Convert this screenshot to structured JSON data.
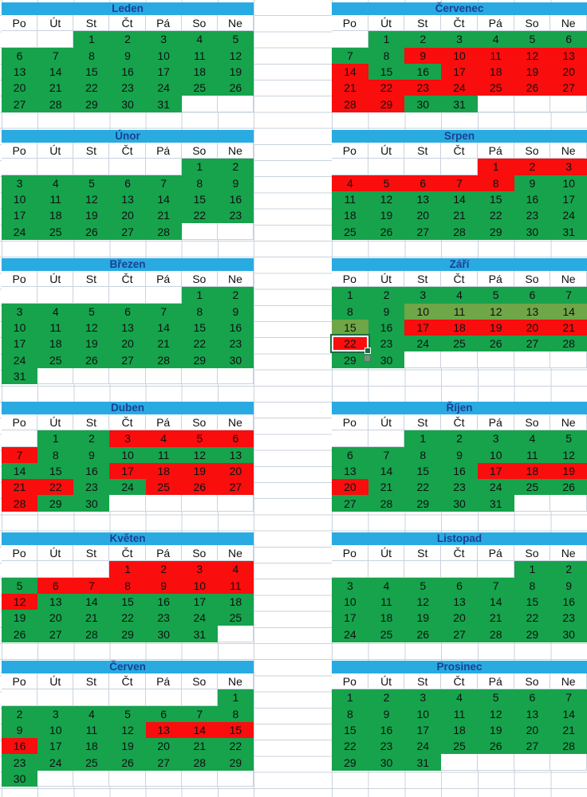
{
  "app": {
    "type": "spreadsheet-year-calendar",
    "language": "cs"
  },
  "colors": {
    "header_band": "#29abe2",
    "title_text": "#1c3f94",
    "workday_green": "#16a34c",
    "holiday_red": "#fa0d0d",
    "selection_highlight_olive": "#6fa647",
    "selection_border_green": "#1d6b43",
    "gridline": "#c9d3dd",
    "day_text": "#101010"
  },
  "day_headers": [
    "Po",
    "Út",
    "St",
    "Čt",
    "Pá",
    "So",
    "Ne"
  ],
  "selection": {
    "month": "Září",
    "active_cell_day": 22,
    "highlighted_days": [
      10,
      11,
      12,
      13,
      14,
      15
    ]
  },
  "months": [
    {
      "name": "Leden",
      "slug": "leden",
      "side": "left",
      "row": 0,
      "weeks": [
        [
          "",
          "",
          "1 g",
          "2 g",
          "3 g",
          "4 g",
          "5 g"
        ],
        [
          "6 g",
          "7 g",
          "8 g",
          "9 g",
          "10 g",
          "11 g",
          "12 g"
        ],
        [
          "13 g",
          "14 g",
          "15 g",
          "16 g",
          "17 g",
          "18 g",
          "19 g"
        ],
        [
          "20 g",
          "21 g",
          "22 g",
          "23 g",
          "24 g",
          "25 g",
          "26 g"
        ],
        [
          "27 g",
          "28 g",
          "29 g",
          "30 g",
          "31 g",
          "",
          ""
        ]
      ]
    },
    {
      "name": "Únor",
      "slug": "unor",
      "side": "left",
      "row": 1,
      "weeks": [
        [
          "",
          "",
          "",
          "",
          "",
          "1 g",
          "2 g"
        ],
        [
          "3 g",
          "4 g",
          "5 g",
          "6 g",
          "7 g",
          "8 g",
          "9 g"
        ],
        [
          "10 g",
          "11 g",
          "12 g",
          "13 g",
          "14 g",
          "15 g",
          "16 g"
        ],
        [
          "17 g",
          "18 g",
          "19 g",
          "20 g",
          "21 g",
          "22 g",
          "23 g"
        ],
        [
          "24 g",
          "25 g",
          "26 g",
          "27 g",
          "28 g",
          "",
          ""
        ]
      ]
    },
    {
      "name": "Březen",
      "slug": "brezen",
      "side": "left",
      "row": 2,
      "weeks": [
        [
          "",
          "",
          "",
          "",
          "",
          "1 g",
          "2 g"
        ],
        [
          "3 g",
          "4 g",
          "5 g",
          "6 g",
          "7 g",
          "8 g",
          "9 g"
        ],
        [
          "10 g",
          "11 g",
          "12 g",
          "13 g",
          "14 g",
          "15 g",
          "16 g"
        ],
        [
          "17 g",
          "18 g",
          "19 g",
          "20 g",
          "21 g",
          "22 g",
          "23 g"
        ],
        [
          "24 g",
          "25 g",
          "26 g",
          "27 g",
          "28 g",
          "29 g",
          "30 g"
        ],
        [
          "31 g",
          "",
          "",
          "",
          "",
          "",
          ""
        ]
      ]
    },
    {
      "name": "Duben",
      "slug": "duben",
      "side": "left",
      "row": 3,
      "weeks": [
        [
          "",
          "1 g",
          "2 g",
          "3 r",
          "4 r",
          "5 r",
          "6 r"
        ],
        [
          "7 r",
          "8 g",
          "9 g",
          "10 g",
          "11 g",
          "12 g",
          "13 g"
        ],
        [
          "14 g",
          "15 g",
          "16 g",
          "17 r",
          "18 r",
          "19 r",
          "20 r"
        ],
        [
          "21 r",
          "22 r",
          "23 g",
          "24 g",
          "25 r",
          "26 r",
          "27 r"
        ],
        [
          "28 r",
          "29 g",
          "30 g",
          "",
          "",
          "",
          ""
        ]
      ]
    },
    {
      "name": "Květen",
      "slug": "kveten",
      "side": "left",
      "row": 4,
      "weeks": [
        [
          "",
          "",
          "",
          "1 r",
          "2 r",
          "3 r",
          "4 r"
        ],
        [
          "5 g",
          "6 r",
          "7 r",
          "8 r",
          "9 r",
          "10 r",
          "11 r"
        ],
        [
          "12 r",
          "13 g",
          "14 g",
          "15 g",
          "16 g",
          "17 g",
          "18 g"
        ],
        [
          "19 g",
          "20 g",
          "21 g",
          "22 g",
          "23 g",
          "24 g",
          "25 g"
        ],
        [
          "26 g",
          "27 g",
          "28 g",
          "29 g",
          "30 g",
          "31 g",
          ""
        ]
      ]
    },
    {
      "name": "Červen",
      "slug": "cerven",
      "side": "left",
      "row": 5,
      "weeks": [
        [
          "",
          "",
          "",
          "",
          "",
          "",
          "1 g"
        ],
        [
          "2 g",
          "3 g",
          "4 g",
          "5 g",
          "6 g",
          "7 g",
          "8 g"
        ],
        [
          "9 g",
          "10 g",
          "11 g",
          "12 g",
          "13 r",
          "14 r",
          "15 r"
        ],
        [
          "16 r",
          "17 g",
          "18 g",
          "19 g",
          "20 g",
          "21 g",
          "22 g"
        ],
        [
          "23 g",
          "24 g",
          "25 g",
          "26 g",
          "27 g",
          "28 g",
          "29 g"
        ],
        [
          "30 g",
          "",
          "",
          "",
          "",
          "",
          ""
        ]
      ]
    },
    {
      "name": "Červenec",
      "slug": "cervenec",
      "side": "right",
      "row": 0,
      "weeks": [
        [
          "",
          "1 g",
          "2 g",
          "3 g",
          "4 g",
          "5 g",
          "6 g"
        ],
        [
          "7 g",
          "8 g",
          "9 r",
          "10 r",
          "11 r",
          "12 r",
          "13 r"
        ],
        [
          "14 r",
          "15 g",
          "16 g",
          "17 r",
          "18 r",
          "19 r",
          "20 r"
        ],
        [
          "21 r",
          "22 r",
          "23 r",
          "24 r",
          "25 r",
          "26 r",
          "27 r"
        ],
        [
          "28 r",
          "29 r",
          "30 g",
          "31 g",
          "",
          "",
          ""
        ]
      ]
    },
    {
      "name": "Srpen",
      "slug": "srpen",
      "side": "right",
      "row": 1,
      "weeks": [
        [
          "",
          "",
          "",
          "",
          "1 r",
          "2 r",
          "3 r"
        ],
        [
          "4 r",
          "5 r",
          "6 r",
          "7 r",
          "8 r",
          "9 g",
          "10 g"
        ],
        [
          "11 g",
          "12 g",
          "13 g",
          "14 g",
          "15 g",
          "16 g",
          "17 g"
        ],
        [
          "18 g",
          "19 g",
          "20 g",
          "21 g",
          "22 g",
          "23 g",
          "24 g"
        ],
        [
          "25 g",
          "26 g",
          "27 g",
          "28 g",
          "29 g",
          "30 g",
          "31 g"
        ]
      ]
    },
    {
      "name": "Září",
      "slug": "zari",
      "side": "right",
      "row": 2,
      "weeks": [
        [
          "1 g",
          "2 g",
          "3 g",
          "4 g",
          "5 g",
          "6 g",
          "7 g"
        ],
        [
          "8 g",
          "9 g",
          "10 h",
          "11 h",
          "12 h",
          "13 h",
          "14 h"
        ],
        [
          "15 h",
          "16 g",
          "17 r",
          "18 r",
          "19 r",
          "20 r",
          "21 r"
        ],
        [
          "22 s",
          "23 g",
          "24 g",
          "25 g",
          "26 g",
          "27 g",
          "28 g"
        ],
        [
          "29 g",
          "30 g",
          "",
          "",
          "",
          "",
          ""
        ]
      ]
    },
    {
      "name": "Říjen",
      "slug": "rijen",
      "side": "right",
      "row": 3,
      "weeks": [
        [
          "",
          "",
          "1 g",
          "2 g",
          "3 g",
          "4 g",
          "5 g"
        ],
        [
          "6 g",
          "7 g",
          "8 g",
          "9 g",
          "10 g",
          "11 g",
          "12 g"
        ],
        [
          "13 g",
          "14 g",
          "15 g",
          "16 g",
          "17 r",
          "18 r",
          "19 r"
        ],
        [
          "20 r",
          "21 g",
          "22 g",
          "23 g",
          "24 g",
          "25 g",
          "26 g"
        ],
        [
          "27 g",
          "28 g",
          "29 g",
          "30 g",
          "31 g",
          "",
          ""
        ]
      ]
    },
    {
      "name": "Listopad",
      "slug": "listopad",
      "side": "right",
      "row": 4,
      "weeks": [
        [
          "",
          "",
          "",
          "",
          "",
          "1 g",
          "2 g"
        ],
        [
          "3 g",
          "4 g",
          "5 g",
          "6 g",
          "7 g",
          "8 g",
          "9 g"
        ],
        [
          "10 g",
          "11 g",
          "12 g",
          "13 g",
          "14 g",
          "15 g",
          "16 g"
        ],
        [
          "17 g",
          "18 g",
          "19 g",
          "20 g",
          "21 g",
          "22 g",
          "23 g"
        ],
        [
          "24 g",
          "25 g",
          "26 g",
          "27 g",
          "28 g",
          "29 g",
          "30 g"
        ]
      ]
    },
    {
      "name": "Prosinec",
      "slug": "prosinec",
      "side": "right",
      "row": 5,
      "weeks": [
        [
          "1 g",
          "2 g",
          "3 g",
          "4 g",
          "5 g",
          "6 g",
          "7 g"
        ],
        [
          "8 g",
          "9 g",
          "10 g",
          "11 g",
          "12 g",
          "13 g",
          "14 g"
        ],
        [
          "15 g",
          "16 g",
          "17 g",
          "18 g",
          "19 g",
          "20 g",
          "21 g"
        ],
        [
          "22 g",
          "23 g",
          "24 g",
          "25 g",
          "26 g",
          "27 g",
          "28 g"
        ],
        [
          "29 g",
          "30 g",
          "31 g",
          "",
          "",
          "",
          ""
        ]
      ]
    }
  ]
}
